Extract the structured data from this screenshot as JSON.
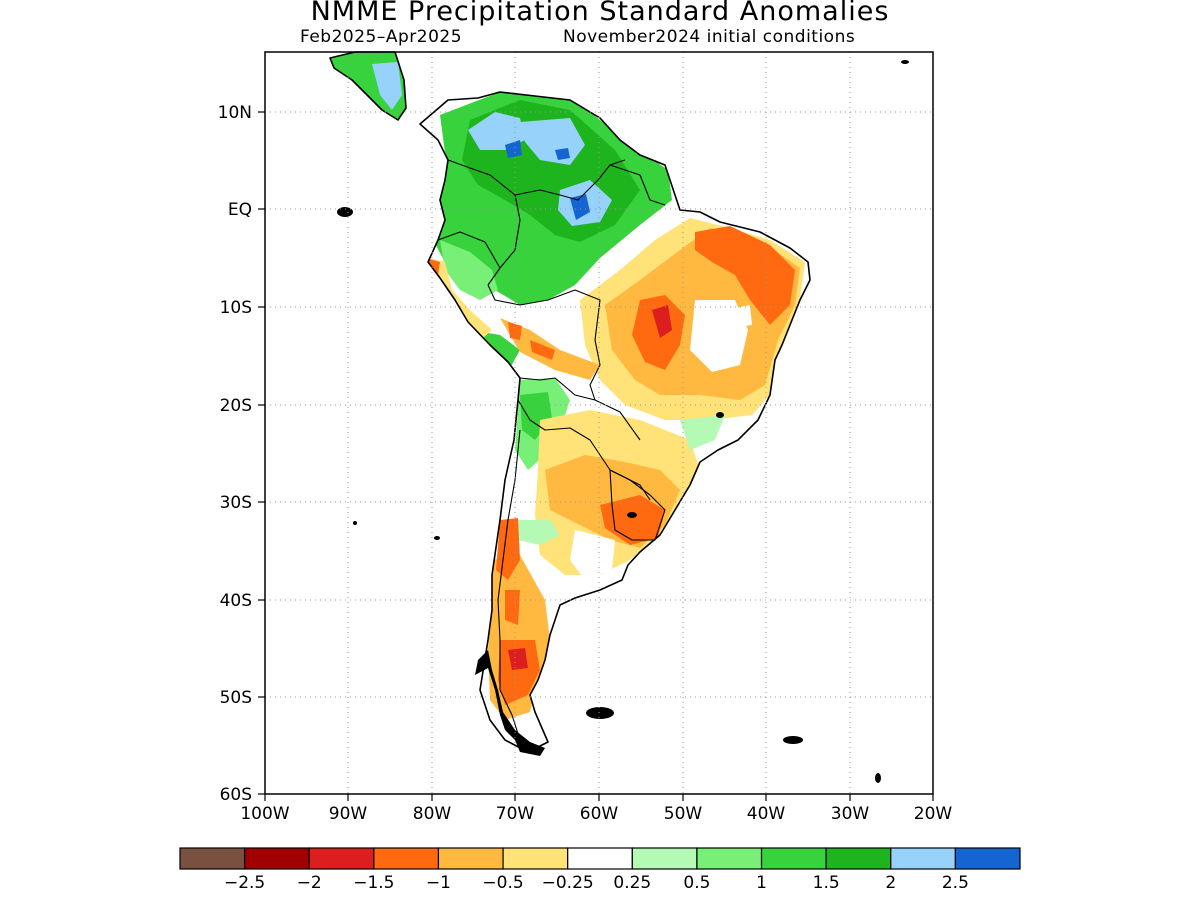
{
  "title": "NMME Precipitation Standard Anomalies",
  "subtitle_left": "Feb2025–Apr2025",
  "subtitle_right": "November2024 initial conditions",
  "map": {
    "lon_range": [
      -100,
      -20
    ],
    "lat_range": [
      -60,
      16
    ],
    "grid": "dotted",
    "y_ticks": [
      {
        "lat": 10,
        "label": "10N"
      },
      {
        "lat": 0,
        "label": "EQ"
      },
      {
        "lat": -10,
        "label": "10S"
      },
      {
        "lat": -20,
        "label": "20S"
      },
      {
        "lat": -30,
        "label": "30S"
      },
      {
        "lat": -40,
        "label": "40S"
      },
      {
        "lat": -50,
        "label": "50S"
      },
      {
        "lat": -60,
        "label": "60S"
      }
    ],
    "x_ticks": [
      {
        "lon": -100,
        "label": "100W"
      },
      {
        "lon": -90,
        "label": "90W"
      },
      {
        "lon": -80,
        "label": "80W"
      },
      {
        "lon": -70,
        "label": "70W"
      },
      {
        "lon": -60,
        "label": "60W"
      },
      {
        "lon": -50,
        "label": "50W"
      },
      {
        "lon": -40,
        "label": "40W"
      },
      {
        "lon": -30,
        "label": "30W"
      },
      {
        "lon": -20,
        "label": "20W"
      }
    ]
  },
  "colorbar": {
    "colors": [
      "#7a5040",
      "#a00000",
      "#dc1e1e",
      "#ff6a10",
      "#ffb940",
      "#ffe278",
      "#ffffff",
      "#b4fab4",
      "#78f078",
      "#37d23c",
      "#1eb41e",
      "#96d2fa",
      "#1464d2"
    ],
    "labels": [
      "−2.5",
      "−2",
      "−1.5",
      "−1",
      "−0.5",
      "−0.25",
      "0.25",
      "0.5",
      "1",
      "1.5",
      "2",
      "2.5"
    ]
  }
}
